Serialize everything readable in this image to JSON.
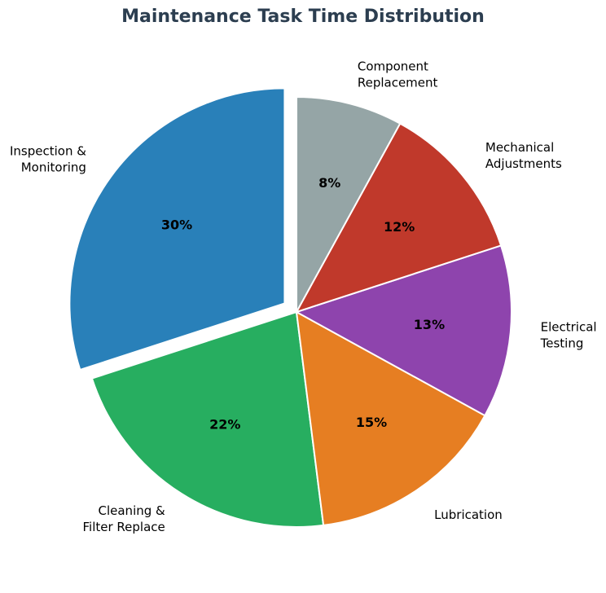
{
  "chart_data": {
    "type": "pie",
    "title": "Maintenance Task Time Distribution",
    "slices": [
      {
        "label": [
          "Inspection &",
          "Monitoring"
        ],
        "value": 30,
        "pct_label": "30%",
        "color": "#2980b9",
        "exploded": true
      },
      {
        "label": [
          "Cleaning &",
          "Filter Replace"
        ],
        "value": 22,
        "pct_label": "22%",
        "color": "#27ae60",
        "exploded": false
      },
      {
        "label": [
          "Lubrication"
        ],
        "value": 15,
        "pct_label": "15%",
        "color": "#e67e22",
        "exploded": false
      },
      {
        "label": [
          "Electrical",
          "Testing"
        ],
        "value": 13,
        "pct_label": "13%",
        "color": "#8e44ad",
        "exploded": false
      },
      {
        "label": [
          "Mechanical",
          "Adjustments"
        ],
        "value": 12,
        "pct_label": "12%",
        "color": "#c0392b",
        "exploded": false
      },
      {
        "label": [
          "Component",
          "Replacement"
        ],
        "value": 8,
        "pct_label": "8%",
        "color": "#95a5a6",
        "exploded": false
      }
    ]
  }
}
